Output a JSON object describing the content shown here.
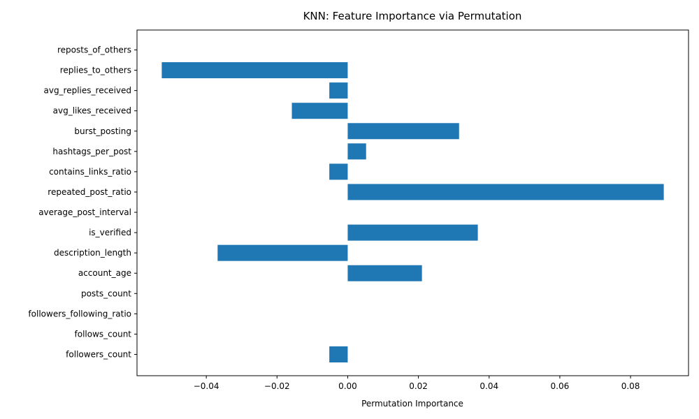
{
  "chart_data": {
    "type": "bar",
    "orientation": "horizontal",
    "title": "KNN: Feature Importance via Permutation",
    "xlabel": "Permutation Importance",
    "ylabel": "",
    "categories": [
      "followers_count",
      "follows_count",
      "followers_following_ratio",
      "posts_count",
      "account_age",
      "description_length",
      "is_verified",
      "average_post_interval",
      "repeated_post_ratio",
      "contains_links_ratio",
      "hashtags_per_post",
      "burst_posting",
      "avg_likes_received",
      "avg_replies_received",
      "replies_to_others",
      "reposts_of_others"
    ],
    "values": [
      -0.0052,
      0,
      0,
      0,
      0.021,
      -0.0368,
      0.0368,
      0,
      0.0894,
      -0.0052,
      0.0052,
      0.0315,
      -0.0158,
      -0.0052,
      -0.0526,
      0
    ],
    "xlim": [
      -0.0596,
      0.0964
    ],
    "xticks": [
      -0.04,
      -0.02,
      0.0,
      0.02,
      0.04,
      0.06,
      0.08
    ],
    "xtick_labels": [
      "−0.04",
      "−0.02",
      "0.00",
      "0.02",
      "0.04",
      "0.06",
      "0.08"
    ],
    "bar_color": "#1f77b4",
    "grid": false,
    "legend": "none"
  }
}
